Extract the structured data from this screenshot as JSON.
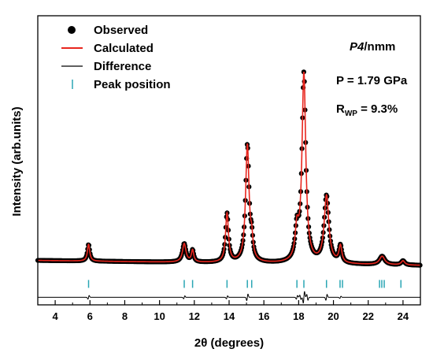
{
  "chart_data": {
    "type": "line",
    "xlabel_prefix": "2",
    "xlabel_symbol": "θ",
    "xlabel_suffix": " (degrees)",
    "ylabel": "Intensity (arb.units)",
    "xlim": [
      3,
      25
    ],
    "ylim": [
      -0.45,
      3.0
    ],
    "x_ticks": [
      4,
      6,
      8,
      10,
      12,
      14,
      16,
      18,
      20,
      22,
      24
    ],
    "x_tick_labels": [
      "4",
      "6",
      "8",
      "10",
      "12",
      "14",
      "16",
      "18",
      "20",
      "22",
      "24"
    ],
    "legend": {
      "placement": "top-left",
      "items": [
        {
          "label": "Observed",
          "marker": "dot",
          "color": "#000000"
        },
        {
          "label": "Calculated",
          "marker": "line",
          "color": "#e8261e"
        },
        {
          "label": "Difference",
          "marker": "line",
          "color": "#000000"
        },
        {
          "label": "Peak position",
          "marker": "bar",
          "color": "#2aa6b4"
        }
      ]
    },
    "annotations": {
      "space_group_italic": "P",
      "space_group_number": "4",
      "space_group_rest": "/nmm",
      "pressure": "P = 1.79 GPa",
      "rwp_label": "R",
      "rwp_sub": "WP",
      "rwp_value": " = 9.3%"
    },
    "background": {
      "points": [
        [
          3.0,
          0.08
        ],
        [
          10.0,
          0.06
        ],
        [
          25.0,
          0.02
        ]
      ]
    },
    "peaks": [
      {
        "x": 5.92,
        "h": 0.2,
        "w": 0.08
      },
      {
        "x": 11.42,
        "h": 0.22,
        "w": 0.12
      },
      {
        "x": 11.9,
        "h": 0.14,
        "w": 0.08
      },
      {
        "x": 13.88,
        "h": 0.58,
        "w": 0.1
      },
      {
        "x": 15.05,
        "h": 1.4,
        "w": 0.12
      },
      {
        "x": 15.3,
        "h": 0.2,
        "w": 0.08
      },
      {
        "x": 17.9,
        "h": 0.35,
        "w": 0.12
      },
      {
        "x": 18.3,
        "h": 2.25,
        "w": 0.13
      },
      {
        "x": 19.6,
        "h": 0.8,
        "w": 0.16
      },
      {
        "x": 20.4,
        "h": 0.2,
        "w": 0.1
      },
      {
        "x": 22.8,
        "h": 0.1,
        "w": 0.18
      },
      {
        "x": 24.0,
        "h": 0.05,
        "w": 0.12
      }
    ],
    "peak_positions": [
      5.92,
      11.42,
      11.9,
      13.88,
      15.05,
      15.3,
      17.9,
      18.3,
      19.6,
      20.38,
      20.52,
      22.65,
      22.78,
      22.92,
      23.88
    ],
    "peak_marker_y": -0.2,
    "difference_baseline": -0.36,
    "difference_features": [
      {
        "x": 5.92,
        "a": 0.05
      },
      {
        "x": 11.42,
        "a": 0.04
      },
      {
        "x": 13.88,
        "a": 0.04
      },
      {
        "x": 15.05,
        "a": 0.09
      },
      {
        "x": 17.9,
        "a": 0.05
      },
      {
        "x": 18.1,
        "a": -0.06
      },
      {
        "x": 18.3,
        "a": 0.16
      },
      {
        "x": 18.5,
        "a": -0.08
      },
      {
        "x": 19.6,
        "a": 0.08
      },
      {
        "x": 20.4,
        "a": 0.03
      }
    ],
    "observed_step": 0.035,
    "colors": {
      "observed": "#000000",
      "calculated": "#e8261e",
      "difference": "#000000",
      "peak_position": "#2aa6b4"
    }
  }
}
